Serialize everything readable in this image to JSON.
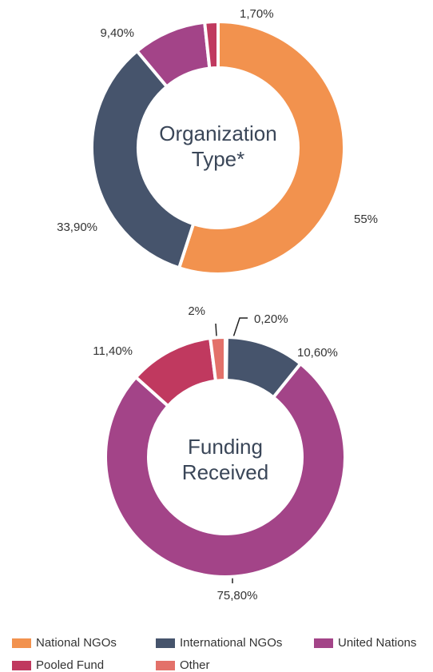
{
  "chart_data": [
    {
      "type": "pie",
      "title": "Organization Type*",
      "categories": [
        "National NGOs",
        "International NGOs",
        "United Nations",
        "Pooled Fund"
      ],
      "values": [
        55,
        33.9,
        9.4,
        1.7
      ],
      "value_labels": [
        "55%",
        "33,90%",
        "9,40%",
        "1,70%"
      ],
      "colors": [
        "#f2924e",
        "#46546c",
        "#a34488",
        "#c0395f"
      ]
    },
    {
      "type": "pie",
      "title": "Funding Received",
      "categories": [
        "National NGOs",
        "International NGOs",
        "United Nations",
        "Pooled Fund",
        "Other"
      ],
      "values": [
        0.2,
        10.6,
        75.8,
        11.4,
        2
      ],
      "value_labels": [
        "0,20%",
        "10,60%",
        "75,80%",
        "11,40%",
        "2%"
      ],
      "colors": [
        "#f2924e",
        "#46546c",
        "#a34488",
        "#c0395f",
        "#e3716a"
      ]
    }
  ]
}
